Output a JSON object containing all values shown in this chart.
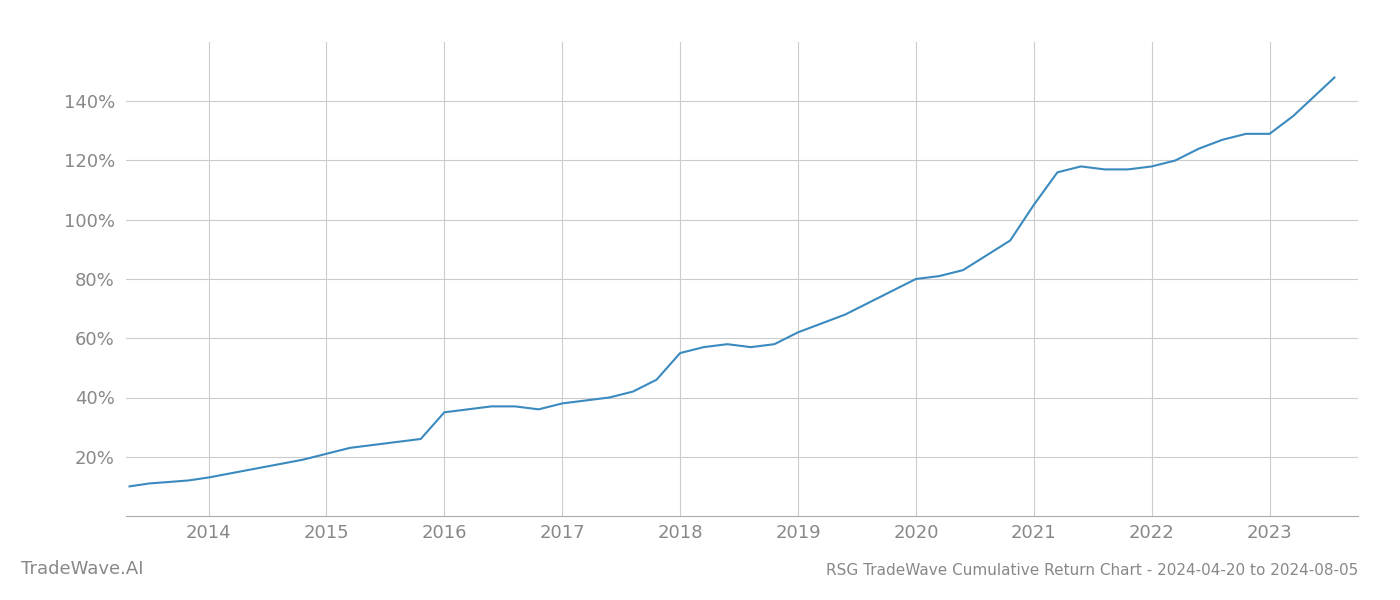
{
  "title": "RSG TradeWave Cumulative Return Chart - 2024-04-20 to 2024-08-05",
  "watermark": "TradeWave.AI",
  "line_color": "#3a8abf",
  "line_width": 1.5,
  "background_color": "#ffffff",
  "grid_color": "#cccccc",
  "tick_color": "#888888",
  "x_years": [
    2014,
    2015,
    2016,
    2017,
    2018,
    2019,
    2020,
    2021,
    2022,
    2023
  ],
  "x_data": [
    2013.33,
    2013.5,
    2013.67,
    2013.83,
    2014.0,
    2014.2,
    2014.4,
    2014.6,
    2014.8,
    2015.0,
    2015.2,
    2015.4,
    2015.6,
    2015.8,
    2016.0,
    2016.2,
    2016.4,
    2016.6,
    2016.8,
    2017.0,
    2017.2,
    2017.4,
    2017.6,
    2017.8,
    2018.0,
    2018.2,
    2018.4,
    2018.6,
    2018.8,
    2019.0,
    2019.2,
    2019.4,
    2019.6,
    2019.8,
    2020.0,
    2020.2,
    2020.4,
    2020.6,
    2020.8,
    2021.0,
    2021.2,
    2021.4,
    2021.6,
    2021.8,
    2022.0,
    2022.2,
    2022.4,
    2022.6,
    2022.8,
    2023.0,
    2023.2,
    2023.55
  ],
  "y_data": [
    10,
    11,
    11.5,
    12,
    13,
    14.5,
    16,
    17.5,
    19,
    21,
    23,
    24,
    25,
    26,
    35,
    36,
    37,
    37,
    36,
    38,
    39,
    40,
    42,
    46,
    55,
    57,
    58,
    57,
    58,
    62,
    65,
    68,
    72,
    76,
    80,
    81,
    83,
    88,
    93,
    105,
    116,
    118,
    117,
    117,
    118,
    120,
    124,
    127,
    129,
    129,
    135,
    148
  ],
  "ylim": [
    0,
    160
  ],
  "yticks": [
    20,
    40,
    60,
    80,
    100,
    120,
    140
  ],
  "xlim": [
    2013.3,
    2023.75
  ],
  "title_fontsize": 11,
  "tick_fontsize": 13,
  "watermark_fontsize": 13
}
